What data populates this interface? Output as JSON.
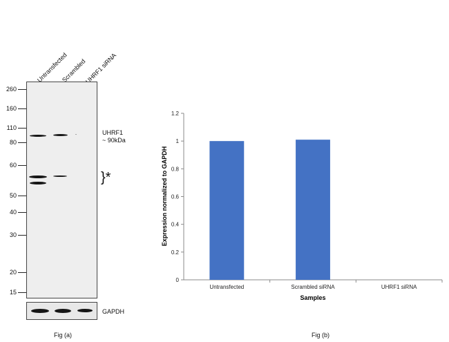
{
  "blot": {
    "lanes": [
      "Untransfected",
      "Scrambled",
      "UHRF1 siRNA"
    ],
    "mw_markers": [
      "260",
      "160",
      "110",
      "80",
      "60",
      "50",
      "40",
      "30",
      "20",
      "15"
    ],
    "target_label": "UHRF1",
    "target_size": "~ 90kDa",
    "asterisk_label": "}*",
    "loading_control": "GAPDH",
    "caption": "Fig (a)"
  },
  "chart_data": {
    "type": "bar",
    "categories": [
      "Untransfected",
      "Scrambled siRNA",
      "UHRF1 siRNA"
    ],
    "values": [
      1.0,
      1.01,
      0.0
    ],
    "title": "",
    "xlabel": "Samples",
    "ylabel": "Expression  normalized to GAPDH",
    "ylim": [
      0,
      1.2
    ],
    "yticks": [
      "0",
      "0.2",
      "0.4",
      "0.6",
      "0.8",
      "1",
      "1.2"
    ],
    "bar_color": "#4472c4",
    "grid": false,
    "caption": "Fig (b)"
  }
}
